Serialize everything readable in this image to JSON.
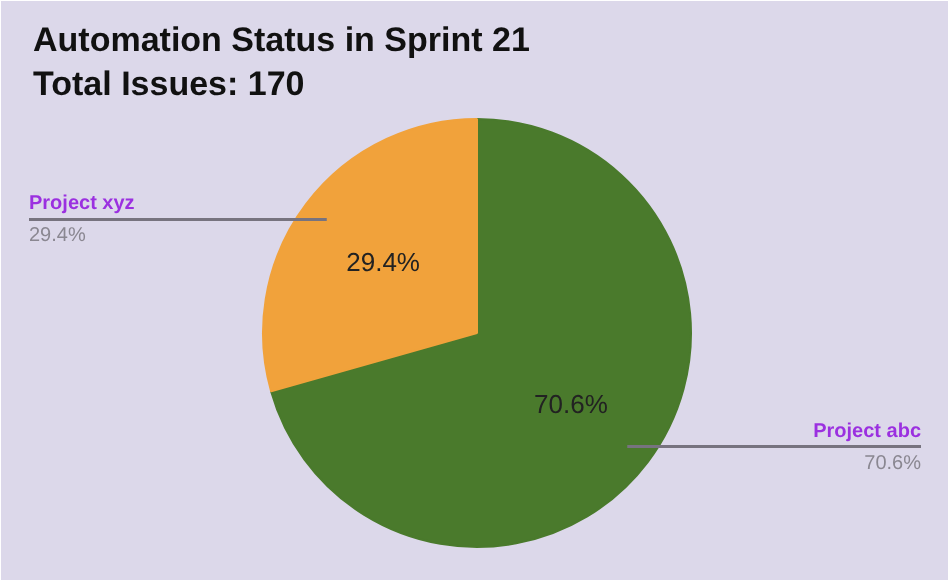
{
  "chart_data": {
    "type": "pie",
    "title": "Automation Status in Sprint 21",
    "subtitle": "Total Issues: 170",
    "categories": [
      "Project abc",
      "Project xyz"
    ],
    "values": [
      70.6,
      29.4
    ],
    "value_labels": [
      "70.6%",
      "29.4%"
    ],
    "colors": [
      "#4a7a2c",
      "#f1a23b"
    ]
  }
}
